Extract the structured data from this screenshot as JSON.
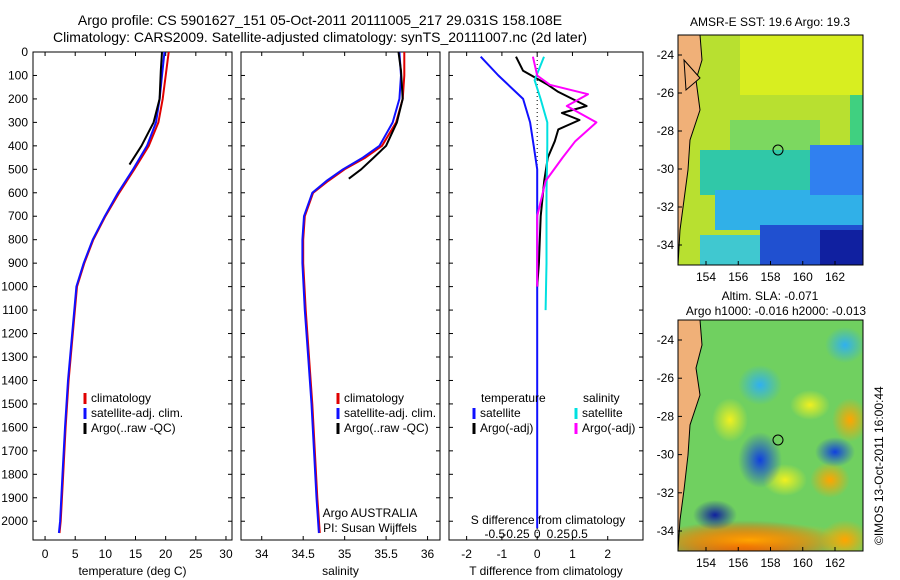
{
  "header": {
    "line1": "Argo profile: CS 5901627_151 05-Oct-2011 20111005_217 29.031S 158.108E",
    "line2": "Climatology: CARS2009. Satellite-adjusted climatology: synTS_20111007.nc (2d later)"
  },
  "colors": {
    "climatology": "#e00000",
    "satellite": "#1010ff",
    "argo": "#000000",
    "salinity_satellite": "#00e0e0",
    "salinity_argo": "#ff00ff"
  },
  "depth_ticks": [
    "0",
    "100",
    "200",
    "300",
    "400",
    "500",
    "600",
    "700",
    "800",
    "900",
    "1000",
    "1100",
    "1200",
    "1300",
    "1400",
    "1500",
    "1600",
    "1700",
    "1800",
    "1900",
    "2000"
  ],
  "panel_temp": {
    "xlabel": "temperature (deg C)",
    "xticks": [
      "0",
      "5",
      "10",
      "15",
      "20",
      "25",
      "30"
    ],
    "legend": [
      "climatology",
      "satellite-adj. clim.",
      "Argo(..raw -QC)"
    ]
  },
  "panel_sal": {
    "xlabel": "salinity",
    "xticks": [
      "34",
      "34.5",
      "35",
      "35.5",
      "36"
    ],
    "legend": [
      "climatology",
      "satellite-adj. clim.",
      "Argo(..raw -QC)"
    ],
    "note1": "Argo AUSTRALIA",
    "note2": "PI: Susan Wijffels"
  },
  "panel_diff": {
    "legend_temp_title": "temperature",
    "legend_sal_title": "salinity",
    "legend_temp": [
      "satellite",
      "Argo(-adj)"
    ],
    "legend_sal": [
      "satellite",
      "Argo(-adj)"
    ],
    "top_axis_label": "S difference from climatology",
    "top_ticks": [
      "-0.5",
      "-0.25",
      "0",
      "0.25",
      "0.5"
    ],
    "bottom_ticks": [
      "-2",
      "-1",
      "0",
      "1",
      "2"
    ],
    "xlabel": "T difference from climatology"
  },
  "map_sst": {
    "title": "AMSR-E SST: 19.6 Argo: 19.3",
    "yticks": [
      "-24",
      "-26",
      "-28",
      "-30",
      "-32",
      "-34"
    ],
    "xticks": [
      "154",
      "156",
      "158",
      "160",
      "162"
    ]
  },
  "map_sla": {
    "title1": "Altim. SLA: -0.071",
    "title2": "Argo h1000: -0.016 h2000: -0.013",
    "yticks": [
      "-24",
      "-26",
      "-28",
      "-30",
      "-32",
      "-34"
    ],
    "xticks": [
      "154",
      "156",
      "158",
      "160",
      "162"
    ]
  },
  "side_text": "©IMOS 13-Oct-2011 16:00:44",
  "chart_data": [
    {
      "type": "line",
      "title": "",
      "xlabel": "temperature (deg C)",
      "ylabel": "",
      "xlim": [
        -2,
        31
      ],
      "ylim": [
        2080,
        0
      ],
      "series": [
        {
          "name": "climatology",
          "x": [
            20.5,
            20.0,
            19.5,
            18.8,
            17.2,
            14.8,
            12.3,
            10.0,
            8.0,
            6.5,
            5.3,
            4.6,
            3.9,
            3.4,
            3.0,
            2.6,
            2.4
          ],
          "depth": [
            0,
            100,
            200,
            300,
            400,
            500,
            600,
            700,
            800,
            900,
            1000,
            1200,
            1400,
            1600,
            1800,
            2000,
            2050
          ]
        },
        {
          "name": "satellite-adj. clim.",
          "x": [
            19.8,
            19.4,
            19.0,
            18.4,
            16.9,
            14.6,
            12.1,
            9.9,
            7.9,
            6.4,
            5.2,
            4.5,
            3.8,
            3.3,
            2.9,
            2.5,
            2.3
          ],
          "depth": [
            0,
            100,
            200,
            300,
            400,
            500,
            600,
            700,
            800,
            900,
            1000,
            1200,
            1400,
            1600,
            1800,
            2000,
            2050
          ]
        },
        {
          "name": "Argo(..raw -QC)",
          "x": [
            19.4,
            19.2,
            19.0,
            18.0,
            16.0,
            14.0
          ],
          "depth": [
            0,
            80,
            200,
            300,
            400,
            480
          ]
        }
      ]
    },
    {
      "type": "line",
      "title": "",
      "xlabel": "salinity",
      "ylabel": "",
      "xlim": [
        33.75,
        36.15
      ],
      "ylim": [
        2080,
        0
      ],
      "series": [
        {
          "name": "climatology",
          "x": [
            35.72,
            35.72,
            35.7,
            35.62,
            35.45,
            35.25,
            35.0,
            34.8,
            34.62,
            34.52,
            34.5,
            34.5,
            34.53,
            34.57,
            34.61,
            34.64,
            34.67,
            34.7
          ],
          "depth": [
            0,
            100,
            200,
            300,
            400,
            450,
            500,
            550,
            600,
            700,
            800,
            900,
            1100,
            1300,
            1500,
            1700,
            1900,
            2050
          ]
        },
        {
          "name": "satellite-adj. clim.",
          "x": [
            35.66,
            35.68,
            35.66,
            35.58,
            35.42,
            35.22,
            34.98,
            34.78,
            34.61,
            34.51,
            34.49,
            34.49,
            34.52,
            34.56,
            34.6,
            34.63,
            34.66,
            34.69
          ],
          "depth": [
            0,
            100,
            200,
            300,
            400,
            450,
            500,
            550,
            600,
            700,
            800,
            900,
            1100,
            1300,
            1500,
            1700,
            1900,
            2050
          ]
        },
        {
          "name": "Argo(..raw -QC)",
          "x": [
            35.65,
            35.68,
            35.7,
            35.63,
            35.5,
            35.35,
            35.2,
            35.05
          ],
          "depth": [
            0,
            80,
            200,
            300,
            400,
            450,
            500,
            540
          ]
        }
      ]
    },
    {
      "type": "line",
      "title": "",
      "xlabel": "T difference from climatology",
      "ylabel": "",
      "xlim": [
        -2.5,
        3.0
      ],
      "ylim": [
        2080,
        0
      ],
      "series": [
        {
          "name": "temperature satellite",
          "x": [
            -1.6,
            -1.1,
            -0.4,
            -0.2,
            -0.1,
            0,
            0,
            0,
            0,
            0
          ],
          "depth": [
            20,
            100,
            200,
            300,
            400,
            500,
            800,
            1200,
            1600,
            2030
          ]
        },
        {
          "name": "temperature Argo(-adj)",
          "x": [
            -0.6,
            -0.4,
            0.3,
            0.6,
            1.4,
            0.7,
            1.2,
            0.6,
            0.5,
            0.3,
            0.2,
            0.1,
            0.05,
            0.0
          ],
          "depth": [
            20,
            80,
            140,
            170,
            230,
            260,
            290,
            330,
            380,
            450,
            550,
            700,
            900,
            1000
          ]
        },
        {
          "name": "salinity satellite",
          "x": [
            0.08,
            -0.03,
            0.04,
            0.12,
            0.12,
            0.11,
            0.11,
            0.1
          ],
          "depth": [
            20,
            120,
            200,
            300,
            400,
            600,
            900,
            1100
          ]
        },
        {
          "name": "salinity Argo(-adj)",
          "x": [
            -0.05,
            0.0,
            0.15,
            0.6,
            0.35,
            0.7,
            0.45,
            0.3,
            0.1,
            0.0,
            0.0
          ],
          "depth": [
            20,
            100,
            140,
            180,
            230,
            300,
            380,
            450,
            550,
            700,
            1000
          ]
        }
      ]
    }
  ]
}
